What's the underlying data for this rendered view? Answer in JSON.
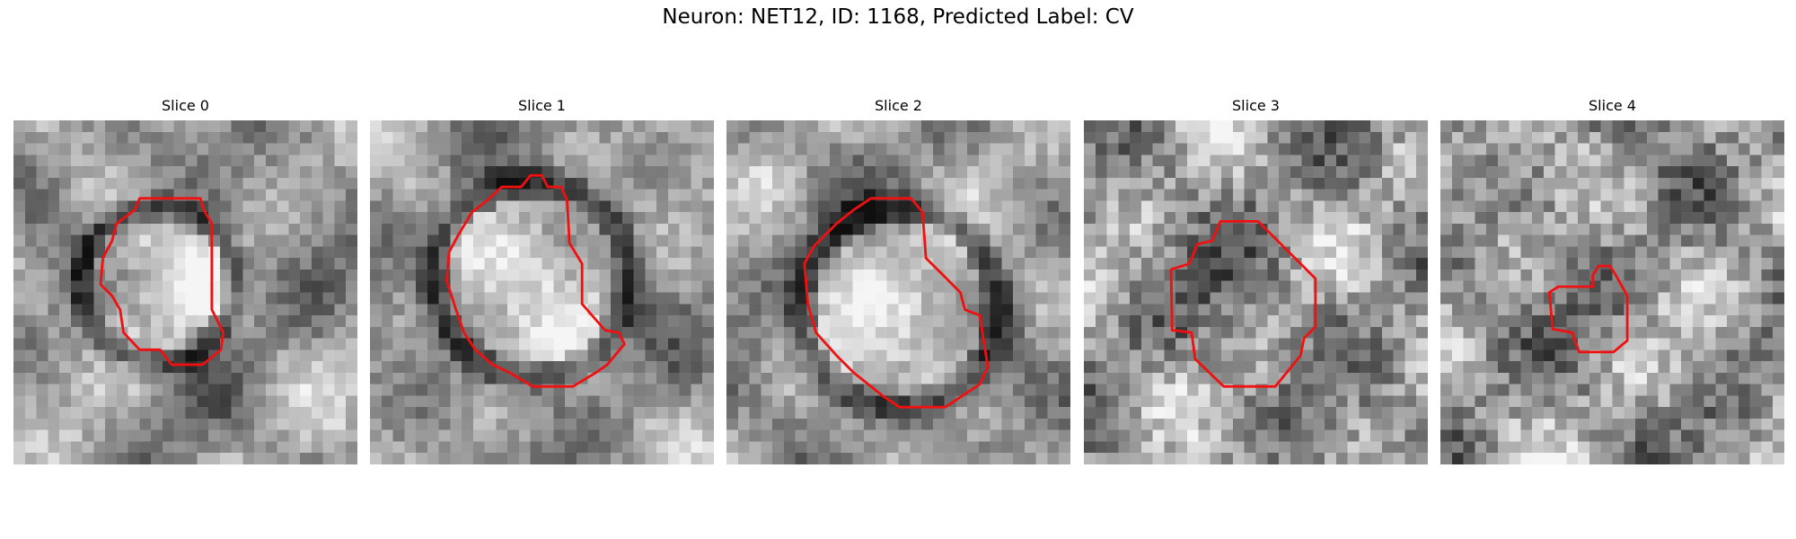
{
  "title": "Neuron: NET12, ID: 1168, Predicted Label: CV",
  "panels": [
    {
      "title": "Slice 0"
    },
    {
      "title": "Slice 1"
    },
    {
      "title": "Slice 2"
    },
    {
      "title": "Slice 3"
    },
    {
      "title": "Slice 4"
    }
  ]
}
